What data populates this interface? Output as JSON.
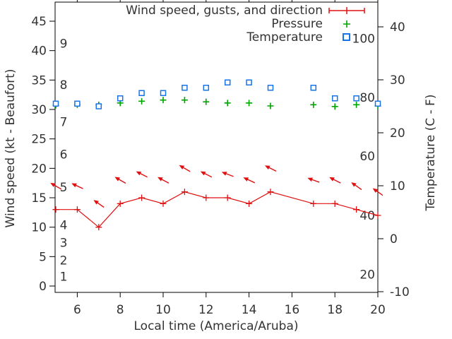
{
  "figure": {
    "xlabel": "Local time (America/Aruba)",
    "ylabel_left": "Wind speed (kt - Beaufort)",
    "ylabel_right": "Temperature (C - F)",
    "background": "#ffffff",
    "axis_color": "#000000",
    "text_color": "#333333"
  },
  "legend": {
    "items": [
      {
        "label": "Wind speed, gusts, and direction",
        "marker": "red-errorbar-plus",
        "color": "#e01010"
      },
      {
        "label": "Pressure",
        "marker": "green-plus",
        "color": "#00a400"
      },
      {
        "label": "Temperature",
        "marker": "blue-open-square",
        "color": "#1874e8"
      }
    ]
  },
  "chart_data": {
    "type": "line",
    "title": "Wind speed, gusts, and direction",
    "xlabel": "Local time (America/Aruba)",
    "ylabel_left": "Wind speed (kt - Beaufort)",
    "ylabel_right": "Temperature (C - F)",
    "grid": false,
    "legend_position": "top-right-inside",
    "x_hours": [
      5,
      6,
      7,
      8,
      9,
      10,
      11,
      12,
      13,
      14,
      15,
      17,
      18,
      19,
      20
    ],
    "note_missing_hour": 16,
    "series": [
      {
        "name": "Wind speed",
        "axis": "left",
        "units": "kt",
        "color": "#e01010",
        "marker": "plus",
        "line": true,
        "values": [
          13,
          13,
          10,
          14,
          15,
          14,
          16,
          15,
          15,
          14,
          16,
          14,
          14,
          13,
          12
        ]
      },
      {
        "name": "Wind gusts and direction",
        "axis": "left",
        "units": "kt",
        "color": "#e01010",
        "marker": "arrow",
        "line": false,
        "values": [
          17,
          17,
          14,
          18,
          19,
          18,
          20,
          19,
          19,
          18,
          20,
          18,
          18,
          17,
          16
        ],
        "arrow_angles_deg": [
          150,
          155,
          145,
          150,
          153,
          152,
          150,
          153,
          159,
          155,
          153,
          160,
          153,
          145,
          145
        ]
      },
      {
        "name": "Pressure",
        "axis": "left",
        "units": "left-axis units",
        "color": "#00a400",
        "marker": "plus",
        "line": false,
        "values": [
          30.7,
          30.8,
          30.8,
          31.1,
          31.4,
          31.6,
          31.6,
          31.3,
          31.1,
          31.1,
          30.6,
          30.8,
          30.5,
          30.8,
          30.6
        ]
      },
      {
        "name": "Temperature",
        "axis": "right",
        "units": "C",
        "color": "#1874e8",
        "marker": "square",
        "line": false,
        "values": [
          25.5,
          25.5,
          25,
          26.5,
          27.5,
          27.5,
          28.5,
          28.5,
          29.5,
          29.5,
          28.5,
          28.5,
          26.5,
          26.5,
          25.5
        ]
      }
    ],
    "axes": {
      "x": {
        "ticks": [
          6,
          8,
          10,
          12,
          14,
          16,
          18,
          20
        ],
        "range": [
          5,
          20
        ]
      },
      "left_kt": {
        "ticks": [
          0,
          5,
          10,
          15,
          20,
          25,
          30,
          35,
          40,
          45
        ],
        "range_at_borders": [
          -1.1,
          48.3
        ]
      },
      "right_c": {
        "ticks": [
          -10,
          0,
          10,
          20,
          30,
          40
        ],
        "range_at_borders": [
          -10.1,
          44.7
        ]
      },
      "beaufort_labels": [
        {
          "label": "1",
          "kt": 1.6
        },
        {
          "label": "2",
          "kt": 4.4
        },
        {
          "label": "3",
          "kt": 7.4
        },
        {
          "label": "4",
          "kt": 10.4
        },
        {
          "label": "5",
          "kt": 16.8
        },
        {
          "label": "6",
          "kt": 22.4
        },
        {
          "label": "7",
          "kt": 27.9
        },
        {
          "label": "8",
          "kt": 34.2
        },
        {
          "label": "9",
          "kt": 41.2
        }
      ],
      "fahrenheit_labels": [
        {
          "label": "20",
          "c": -6.7
        },
        {
          "label": "40",
          "c": 4.4
        },
        {
          "label": "60",
          "c": 15.6
        },
        {
          "label": "80",
          "c": 26.7
        },
        {
          "label": "100",
          "c": 37.8
        }
      ]
    }
  }
}
